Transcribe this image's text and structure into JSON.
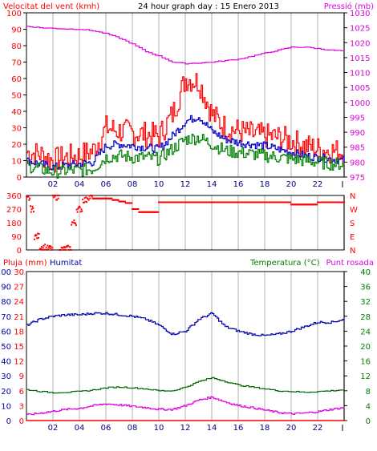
{
  "header": {
    "wind_label": "Velocitat del vent (kmh)",
    "title": "24 hour graph day : 15 Enero 2013",
    "pressure_label": "Pressió (mb)"
  },
  "bottom_header": {
    "rain_label": "Pluja (mm)",
    "humidity_label": "Humitat",
    "temp_label": "Temperatura (°C)",
    "dew_label": "Punt rosada"
  },
  "colors": {
    "wind_avg": "#008000",
    "wind_gust": "#ff0000",
    "wind_mid": "#0000cc",
    "pressure": "#dd00dd",
    "direction": "#ff0000",
    "humidity": "#0000aa",
    "temperature": "#006600",
    "dew": "#dd00dd",
    "rain": "#ff0000"
  },
  "x_ticks": [
    "02",
    "04",
    "06",
    "08",
    "10",
    "12",
    "14",
    "16",
    "18",
    "20",
    "22"
  ],
  "chart_data": [
    {
      "type": "line",
      "title": "24 hour graph day : 15 Enero 2013",
      "ylabel": "Velocitat del vent (kmh)",
      "y2label": "Pressió (mb)",
      "ylim": [
        0,
        100
      ],
      "y2lim": [
        975,
        1030
      ],
      "y_ticks": [
        0,
        10,
        20,
        30,
        40,
        50,
        60,
        70,
        80,
        90,
        100
      ],
      "y2_ticks": [
        975,
        980,
        985,
        990,
        995,
        1000,
        1005,
        1010,
        1015,
        1020,
        1025,
        1030
      ],
      "x": [
        0,
        1,
        2,
        3,
        4,
        5,
        6,
        7,
        8,
        9,
        10,
        11,
        12,
        13,
        14,
        15,
        16,
        17,
        18,
        19,
        20,
        21,
        22,
        23,
        24
      ],
      "series": [
        {
          "key": "gust",
          "values": [
            15,
            14,
            10,
            12,
            13,
            16,
            30,
            28,
            27,
            26,
            25,
            38,
            60,
            58,
            38,
            30,
            28,
            26,
            25,
            24,
            22,
            19,
            17,
            16,
            15
          ]
        },
        {
          "key": "mid",
          "values": [
            10,
            8,
            6,
            7,
            8,
            9,
            19,
            20,
            19,
            18,
            17,
            25,
            34,
            37,
            28,
            23,
            21,
            20,
            19,
            17,
            15,
            13,
            12,
            11,
            10
          ]
        },
        {
          "key": "avg",
          "values": [
            7,
            5,
            3,
            4,
            4,
            5,
            12,
            13,
            12,
            12,
            11,
            17,
            23,
            24,
            20,
            16,
            15,
            14,
            13,
            12,
            11,
            10,
            9,
            8,
            8
          ]
        },
        {
          "key": "pressure",
          "values": [
            1025.5,
            1025,
            1024.8,
            1024.6,
            1024.5,
            1024,
            1023,
            1021.5,
            1019.5,
            1017,
            1015.5,
            1013.5,
            1013,
            1013.2,
            1013.5,
            1014,
            1014.5,
            1015.5,
            1016.5,
            1017.5,
            1018.5,
            1018.5,
            1018,
            1017.5,
            1017.2
          ]
        }
      ]
    },
    {
      "type": "scatter",
      "ylim": [
        0,
        360
      ],
      "y_ticks": [
        0,
        90,
        180,
        270,
        360
      ],
      "y2_labels": [
        "N",
        "W",
        "S",
        "E",
        "N"
      ],
      "x": [
        0,
        0.3,
        0.6,
        1,
        1.5,
        2,
        2.5,
        3,
        3.4,
        3.8,
        4.2,
        4.6,
        5,
        5.5,
        6,
        6.5,
        7,
        7.5,
        8,
        8.5,
        9,
        9.5,
        10,
        11,
        12,
        13,
        14,
        15,
        16,
        17,
        18,
        19,
        20,
        21,
        22,
        23,
        24
      ],
      "values": [
        340,
        270,
        90,
        20,
        10,
        350,
        5,
        10,
        180,
        270,
        330,
        350,
        340,
        340,
        340,
        330,
        320,
        310,
        270,
        250,
        250,
        250,
        315,
        315,
        315,
        315,
        315,
        315,
        315,
        315,
        315,
        315,
        300,
        300,
        315,
        315,
        315
      ]
    },
    {
      "type": "line",
      "ylabel": "Pluja (mm)",
      "y2label": "Temperatura (°C)",
      "ylim": [
        0,
        30
      ],
      "y_ticks": [
        0,
        3,
        6,
        9,
        12,
        15,
        18,
        21,
        24,
        27,
        30
      ],
      "humidity_ticks": [
        0,
        10,
        20,
        30,
        40,
        50,
        60,
        70,
        80,
        90,
        100
      ],
      "y2lim": [
        0,
        40
      ],
      "y2_ticks": [
        0,
        4,
        8,
        12,
        16,
        20,
        24,
        28,
        32,
        36,
        40
      ],
      "x": [
        0,
        1,
        2,
        3,
        4,
        5,
        6,
        7,
        8,
        9,
        10,
        11,
        12,
        13,
        14,
        15,
        16,
        17,
        18,
        19,
        20,
        21,
        22,
        23,
        24
      ],
      "series": [
        {
          "key": "humidity",
          "values": [
            64,
            68,
            70,
            71,
            71,
            72,
            72,
            71,
            70,
            68,
            64,
            58,
            60,
            68,
            72,
            63,
            60,
            58,
            57,
            58,
            60,
            63,
            66,
            66,
            68
          ]
        },
        {
          "key": "temperature",
          "values": [
            8.3,
            7.8,
            7.5,
            7.6,
            7.8,
            8.2,
            8.8,
            9.0,
            8.8,
            8.5,
            8.0,
            8.0,
            9.0,
            10.5,
            11.5,
            10.5,
            9.5,
            9.0,
            8.5,
            8.0,
            7.8,
            7.6,
            7.8,
            8.0,
            8.3
          ]
        },
        {
          "key": "dew",
          "values": [
            1.5,
            2.0,
            2.5,
            3.0,
            3.3,
            4.0,
            4.5,
            4.2,
            3.8,
            3.5,
            3.0,
            3.0,
            4.0,
            5.5,
            6.3,
            5.0,
            4.0,
            3.5,
            2.8,
            2.2,
            1.8,
            2.0,
            2.4,
            3.0,
            3.5
          ]
        },
        {
          "key": "rain",
          "values": [
            0,
            0,
            0,
            0,
            0,
            0,
            0,
            0,
            0,
            0,
            0,
            0,
            0,
            0,
            0,
            0,
            0,
            0,
            0,
            0,
            0,
            0,
            0,
            0,
            0
          ]
        }
      ]
    }
  ]
}
